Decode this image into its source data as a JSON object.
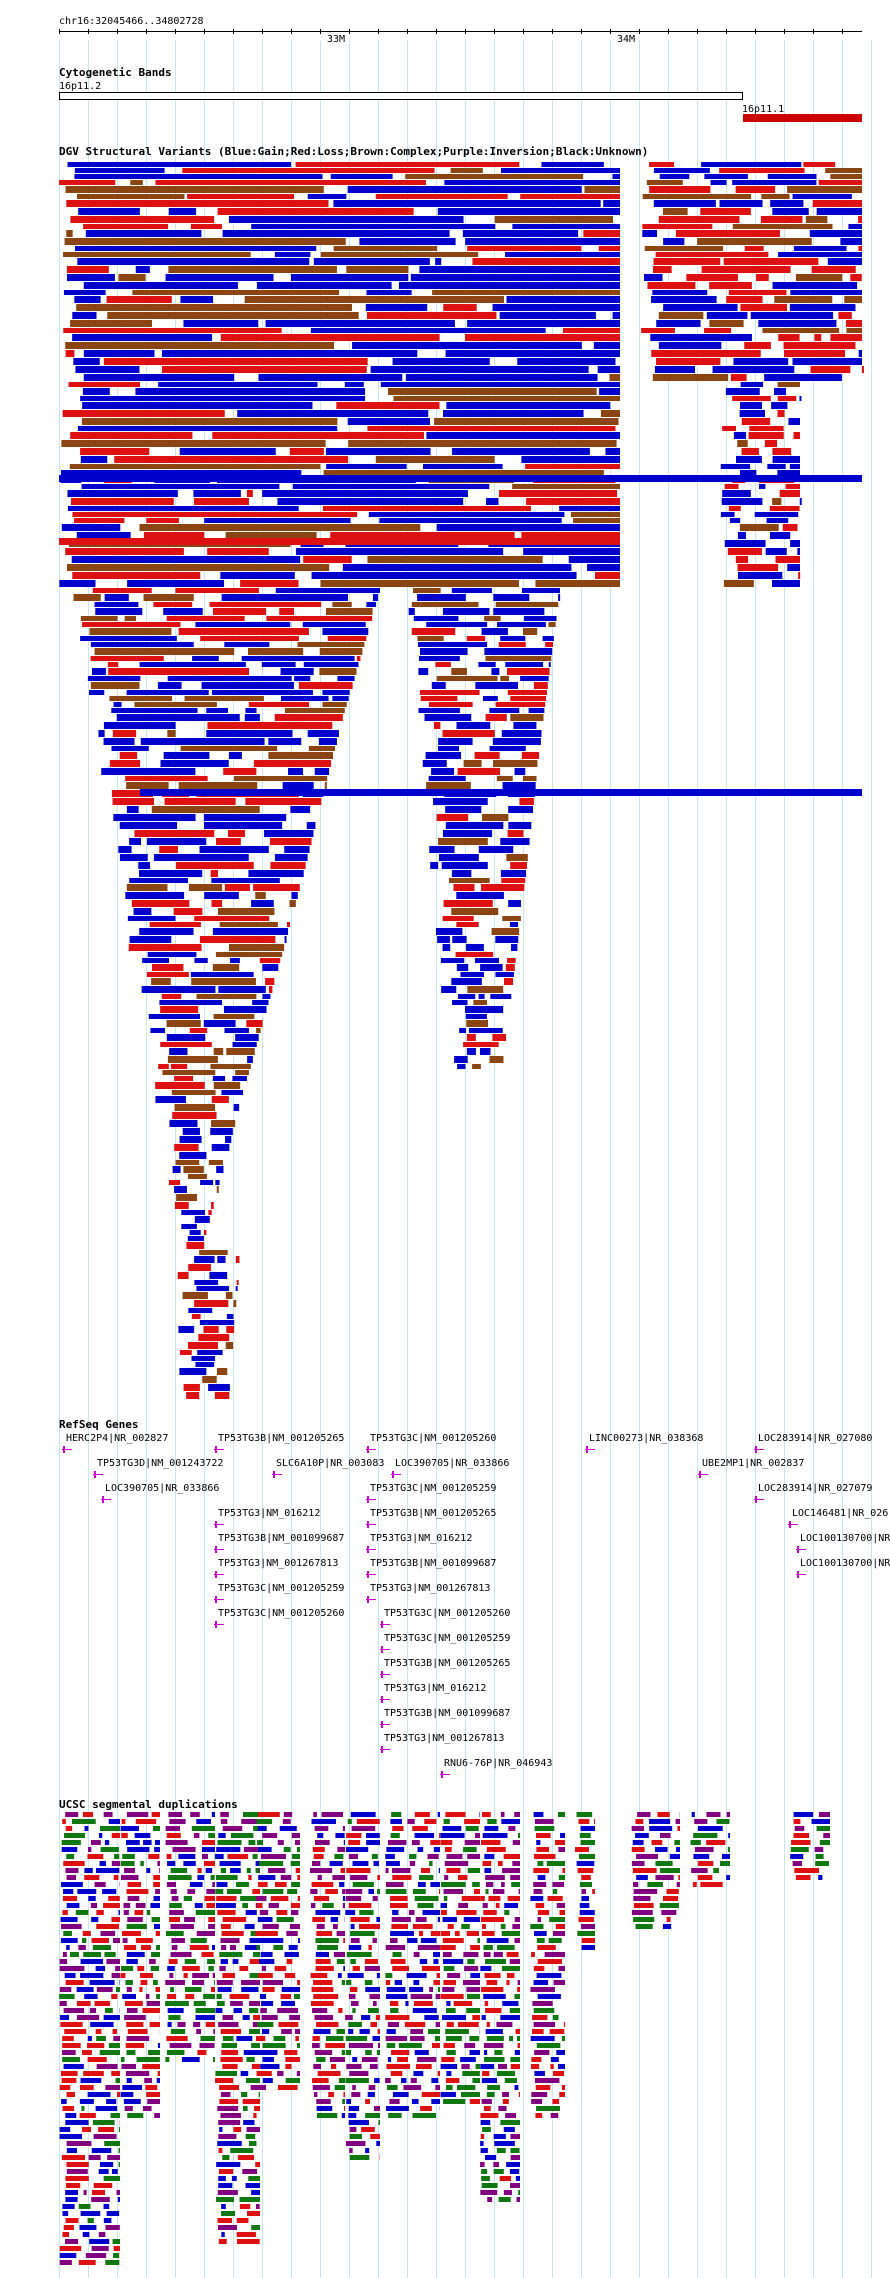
{
  "coords": "chr16:32045466..34802728",
  "ruler": {
    "ticks": [
      "33M",
      "34M"
    ]
  },
  "tracks": {
    "cytoband": {
      "title": "Cytogenetic Bands",
      "bands": [
        "16p11.2",
        "16p11.1"
      ],
      "colors": {
        "p11_2": "#ffffff",
        "p11_1": "#cc0000"
      }
    },
    "dgv": {
      "title": "DGV Structural Variants (Blue:Gain;Red:Loss;Brown:Complex;Purple:Inversion;Black:Unknown)",
      "colors": {
        "gain": "#0000cc",
        "loss": "#dd1111",
        "complex": "#8b4513",
        "inversion": "#800080",
        "unknown": "#000000"
      }
    },
    "refseq": {
      "title": "RefSeq Genes",
      "color": "#cc00cc",
      "genes": [
        "HERC2P4|NR_002827",
        "TP53TG3D|NM_001243722",
        "LOC390705|NR_033866",
        "TP53TG3B|NM_001205265",
        "TP53TG3|NM_016212",
        "TP53TG3B|NM_001099687",
        "TP53TG3|NM_001267813",
        "TP53TG3C|NM_001205259",
        "TP53TG3C|NM_001205260",
        "SLC6A10P|NR_003083",
        "TP53TG3C|NM_001205260",
        "LOC390705|NR_033866",
        "TP53TG3C|NM_001205259",
        "TP53TG3B|NM_001205265",
        "TP53TG3|NM_016212",
        "TP53TG3B|NM_001099687",
        "TP53TG3|NM_001267813",
        "TP53TG3C|NM_001205260",
        "TP53TG3C|NM_001205259",
        "TP53TG3B|NM_001205265",
        "TP53TG3|NM_016212",
        "TP53TG3B|NM_001099687",
        "TP53TG3|NM_001267813",
        "RNU6-76P|NR_046943",
        "LINC00273|NR_038368",
        "UBE2MP1|NR_002837",
        "LOC283914|NR_027080",
        "LOC283914|NR_027079",
        "LOC146481|NR_026",
        "LOC100130700|NR",
        "LOC100130700|NR"
      ]
    },
    "segdups": {
      "title": "UCSC segmental duplications",
      "colors": [
        "#dd1111",
        "#800080",
        "#117711",
        "#0000cc",
        "#888888"
      ]
    }
  }
}
